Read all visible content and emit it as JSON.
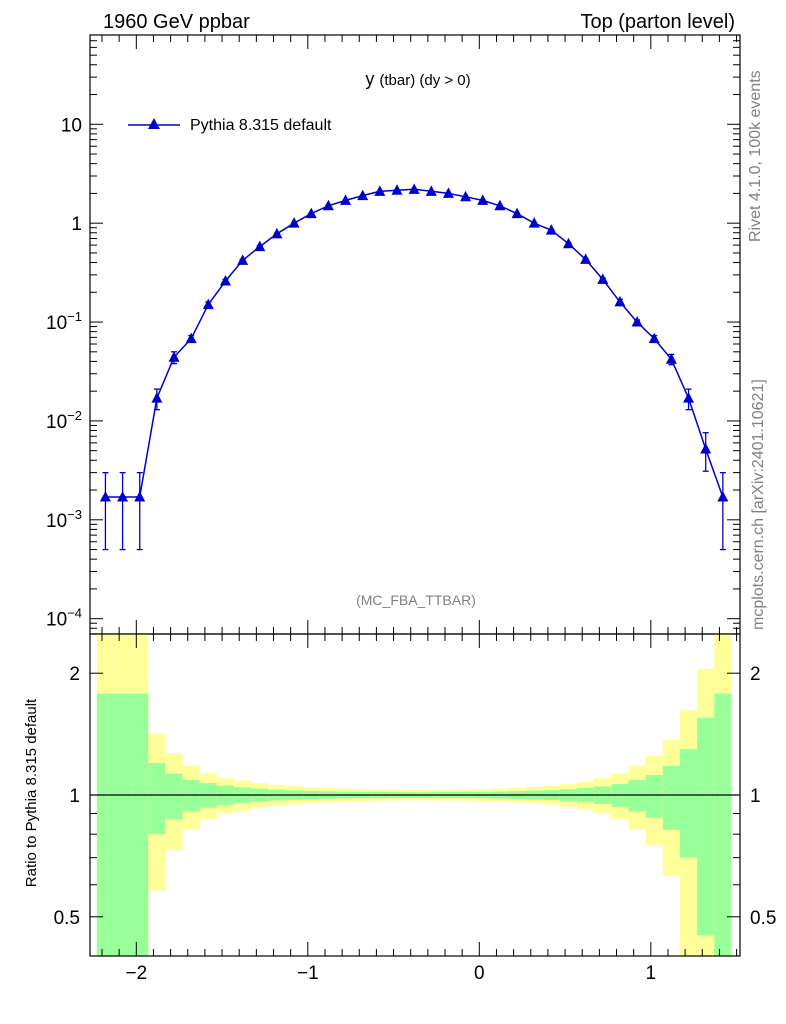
{
  "header": {
    "left_title": "1960 GeV ppbar",
    "right_title": "Top (parton level)"
  },
  "side_labels": {
    "rivet": "Rivet 4.1.0,  100k events",
    "source": "mcplots.cern.ch [arXiv:2401.10621]"
  },
  "colors": {
    "series": "#0000cc",
    "band_inner": "#99ff99",
    "band_outer": "#ffff99",
    "watermark": "#808080"
  },
  "chart_data": [
    {
      "type": "line",
      "title": "y (tbar) (dy > 0)",
      "title_main": "y",
      "title_sub": "(tbar) (dy > 0)",
      "watermark": "(MC_FBA_TTBAR)",
      "yscale": "log",
      "xlim": [
        -2.27,
        1.52
      ],
      "ylim": [
        7e-05,
        80
      ],
      "yticks": [
        0.0001,
        0.001,
        0.01,
        0.1,
        1,
        10
      ],
      "ytick_labels": [
        {
          "base": "10",
          "exp": "−4"
        },
        {
          "base": "10",
          "exp": "−3"
        },
        {
          "base": "10",
          "exp": "−2"
        },
        {
          "base": "10",
          "exp": "−1"
        },
        {
          "base": "1",
          "exp": ""
        },
        {
          "base": "10",
          "exp": ""
        }
      ],
      "legend_position": "top-left",
      "series": [
        {
          "name": "Pythia 8.315 default",
          "marker": "triangle",
          "x": [
            -2.18,
            -2.08,
            -1.98,
            -1.88,
            -1.78,
            -1.68,
            -1.58,
            -1.48,
            -1.38,
            -1.28,
            -1.18,
            -1.08,
            -0.98,
            -0.88,
            -0.78,
            -0.68,
            -0.58,
            -0.48,
            -0.38,
            -0.28,
            -0.18,
            -0.08,
            0.02,
            0.12,
            0.22,
            0.32,
            0.42,
            0.52,
            0.62,
            0.72,
            0.82,
            0.92,
            1.02,
            1.12,
            1.22,
            1.32,
            1.42
          ],
          "values": [
            0.0017,
            0.0017,
            0.0017,
            0.017,
            0.044,
            0.068,
            0.15,
            0.26,
            0.42,
            0.58,
            0.78,
            1.0,
            1.25,
            1.5,
            1.7,
            1.9,
            2.1,
            2.15,
            2.2,
            2.1,
            2.0,
            1.85,
            1.7,
            1.5,
            1.25,
            1.0,
            0.85,
            0.62,
            0.43,
            0.27,
            0.16,
            0.1,
            0.068,
            0.042,
            0.017,
            0.0052,
            0.0017
          ],
          "err_low": [
            0.0005,
            0.0005,
            0.0005,
            0.013,
            0.038,
            0.063,
            0.14,
            0.25,
            0.41,
            0.57,
            0.77,
            0.99,
            1.24,
            1.49,
            1.69,
            1.89,
            2.09,
            2.14,
            2.19,
            2.09,
            1.99,
            1.84,
            1.69,
            1.49,
            1.24,
            0.99,
            0.84,
            0.61,
            0.42,
            0.26,
            0.15,
            0.095,
            0.063,
            0.037,
            0.013,
            0.0031,
            0.0005
          ],
          "err_high": [
            0.003,
            0.003,
            0.003,
            0.021,
            0.05,
            0.073,
            0.16,
            0.27,
            0.43,
            0.59,
            0.79,
            1.01,
            1.26,
            1.51,
            1.71,
            1.91,
            2.11,
            2.16,
            2.21,
            2.11,
            2.01,
            1.86,
            1.71,
            1.51,
            1.26,
            1.01,
            0.86,
            0.63,
            0.44,
            0.28,
            0.17,
            0.105,
            0.073,
            0.047,
            0.021,
            0.0076,
            0.003
          ]
        }
      ]
    },
    {
      "type": "area",
      "ylabel": "Ratio to Pythia 8.315 default",
      "yscale": "log",
      "xlim": [
        -2.27,
        1.52
      ],
      "ylim": [
        0.4,
        2.5
      ],
      "yticks": [
        0.5,
        1,
        2
      ],
      "ytick_labels": [
        "0.5",
        "1",
        "2"
      ],
      "xticks": [
        -2,
        -1,
        0,
        1
      ],
      "xtick_labels": [
        "−2",
        "−1",
        "0",
        "1"
      ],
      "bins": [
        -2.23,
        -2.13,
        -2.03,
        -1.93,
        -1.83,
        -1.73,
        -1.63,
        -1.53,
        -1.43,
        -1.33,
        -1.23,
        -1.13,
        -1.03,
        -0.93,
        -0.83,
        -0.73,
        -0.63,
        -0.53,
        -0.43,
        -0.33,
        -0.23,
        -0.13,
        -0.03,
        0.07,
        0.17,
        0.27,
        0.37,
        0.47,
        0.57,
        0.67,
        0.77,
        0.87,
        0.97,
        1.07,
        1.17,
        1.27,
        1.37,
        1.47
      ],
      "band_inner_rel": [
        0.78,
        0.78,
        0.78,
        0.2,
        0.13,
        0.09,
        0.07,
        0.055,
        0.045,
        0.037,
        0.031,
        0.027,
        0.024,
        0.021,
        0.019,
        0.018,
        0.017,
        0.016,
        0.016,
        0.016,
        0.017,
        0.017,
        0.018,
        0.02,
        0.022,
        0.025,
        0.028,
        0.033,
        0.04,
        0.05,
        0.065,
        0.09,
        0.12,
        0.18,
        0.3,
        0.55,
        0.78
      ],
      "band_outer_rel": [
        1.5,
        1.5,
        1.5,
        0.42,
        0.27,
        0.18,
        0.13,
        0.1,
        0.085,
        0.07,
        0.06,
        0.052,
        0.046,
        0.041,
        0.037,
        0.034,
        0.032,
        0.031,
        0.03,
        0.03,
        0.031,
        0.032,
        0.034,
        0.037,
        0.041,
        0.047,
        0.054,
        0.064,
        0.078,
        0.1,
        0.13,
        0.18,
        0.25,
        0.37,
        0.62,
        1.05,
        1.5
      ],
      "reference_line": 1
    }
  ]
}
